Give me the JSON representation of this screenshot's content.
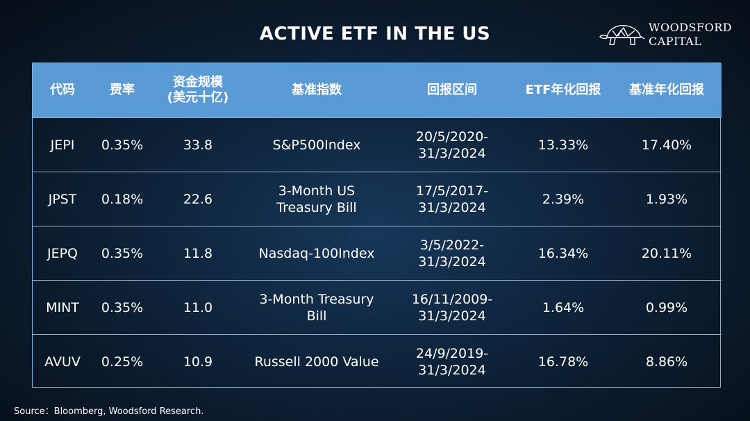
{
  "title": "ACTIVE ETF IN THE US",
  "logo": {
    "line1": "WOODSFORD",
    "line2": "CAPITAL",
    "icon": "tortoise-icon"
  },
  "table": {
    "headers": [
      "代码",
      "费率",
      "资金规模\n(美元十亿)",
      "基准指数",
      "回报区间",
      "ETF年化回报",
      "基准年化回报"
    ],
    "rows": [
      [
        "JEPI",
        "0.35%",
        "33.8",
        "S&P500Index",
        "20/5/2020-\n31/3/2024",
        "13.33%",
        "17.40%"
      ],
      [
        "JPST",
        "0.18%",
        "22.6",
        "3-Month US\nTreasury Bill",
        "17/5/2017-\n31/3/2024",
        "2.39%",
        "1.93%"
      ],
      [
        "JEPQ",
        "0.35%",
        "11.8",
        "Nasdaq-100Index",
        "3/5/2022-\n31/3/2024",
        "16.34%",
        "20.11%"
      ],
      [
        "MINT",
        "0.35%",
        "11.0",
        "3-Month Treasury\nBill",
        "16/11/2009-\n31/3/2024",
        "1.64%",
        "0.99%"
      ],
      [
        "AVUV",
        "0.25%",
        "10.9",
        "Russell 2000 Value",
        "24/9/2019-\n31/3/2024",
        "16.78%",
        "8.86%"
      ]
    ]
  },
  "source": "Source：Bloomberg, Woodsford Research.",
  "colors": {
    "header_bg": "#5b9bd5",
    "border": "#7fb4e6",
    "background": "#0f2740"
  }
}
